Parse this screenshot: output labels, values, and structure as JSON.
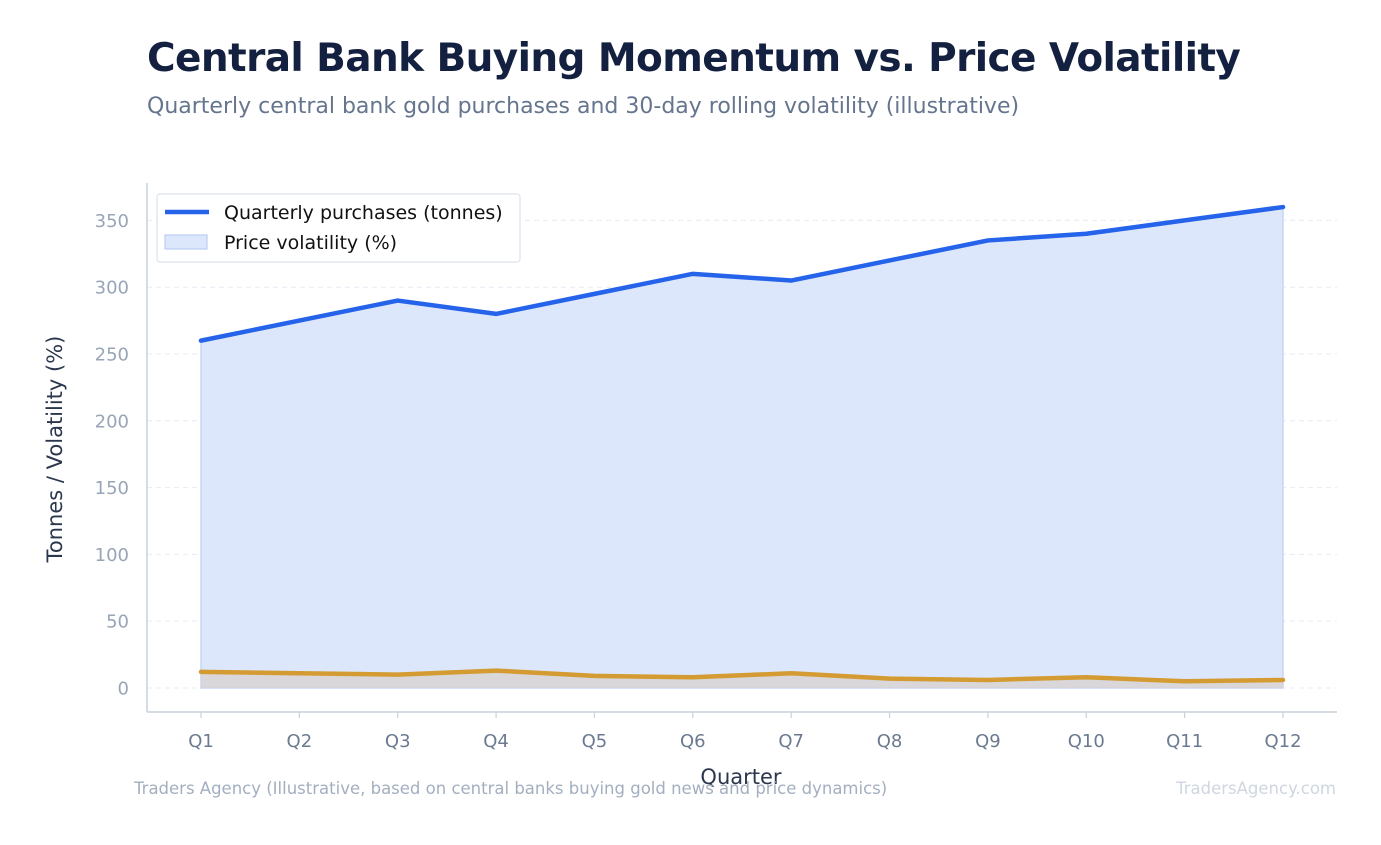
{
  "header": {
    "title": "Central Bank Buying Momentum vs. Price Volatility",
    "subtitle": "Quarterly central bank gold purchases and 30-day rolling volatility (illustrative)"
  },
  "footer": {
    "source": "Traders Agency (Illustrative, based on central banks buying gold news and price dynamics)",
    "brand": "TradersAgency.com"
  },
  "chart_data": {
    "type": "line",
    "xlabel": "Quarter",
    "ylabel": "Tonnes / Volatility (%)",
    "categories": [
      "Q1",
      "Q2",
      "Q3",
      "Q4",
      "Q5",
      "Q6",
      "Q7",
      "Q8",
      "Q9",
      "Q10",
      "Q11",
      "Q12"
    ],
    "ylim": [
      -18,
      378
    ],
    "yticks": [
      0,
      50,
      100,
      150,
      200,
      250,
      300,
      350
    ],
    "grid": true,
    "legend_position": "top-left",
    "series": [
      {
        "name": "Quarterly purchases (tonnes)",
        "render": "line-with-area",
        "color": "#2563eb",
        "fill": "#dde7fb",
        "values": [
          260,
          275,
          290,
          280,
          295,
          310,
          305,
          320,
          335,
          340,
          350,
          360
        ]
      },
      {
        "name": "Price volatility (%)",
        "render": "line-with-area",
        "color": "#d49b32",
        "fill": "#d8d4d2",
        "values": [
          12,
          11,
          10,
          13,
          9,
          8,
          11,
          7,
          6,
          8,
          5,
          6
        ]
      }
    ]
  }
}
